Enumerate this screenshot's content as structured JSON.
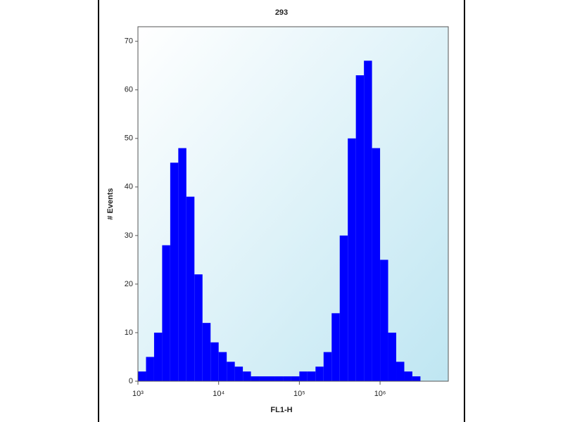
{
  "chart_data": {
    "type": "histogram",
    "title": "293",
    "xlabel": "FL1-H",
    "ylabel": "# Events",
    "log_x": true,
    "color": "#0000ff",
    "bins": [
      1000,
      1259,
      1585,
      1995,
      2512,
      3162,
      3981,
      5012,
      6310,
      7943,
      10000,
      12589,
      15849,
      19953,
      25119,
      31623,
      39811,
      50119,
      63096,
      79433,
      100000,
      125893,
      158489,
      199526,
      251189,
      316228,
      398107,
      501187,
      630957,
      794328,
      1000000,
      1258925,
      1584893,
      1995262,
      2511886,
      3162278,
      3981072,
      5011872,
      6309573
    ],
    "counts": [
      2,
      5,
      10,
      28,
      45,
      48,
      38,
      22,
      12,
      8,
      6,
      4,
      3,
      2,
      1,
      1,
      1,
      1,
      1,
      1,
      2,
      2,
      3,
      6,
      14,
      30,
      50,
      63,
      66,
      48,
      25,
      10,
      4,
      2,
      1,
      0,
      0,
      0
    ],
    "xlim": [
      1000,
      7000000
    ],
    "xticks": [
      {
        "value": 1000,
        "label": "10³"
      },
      {
        "value": 10000,
        "label": "10⁴"
      },
      {
        "value": 100000,
        "label": "10⁵"
      },
      {
        "value": 1000000,
        "label": "10⁶"
      }
    ],
    "ylim": [
      0,
      73
    ],
    "yticks": [
      0,
      10,
      20,
      30,
      40,
      50,
      60,
      70
    ]
  }
}
